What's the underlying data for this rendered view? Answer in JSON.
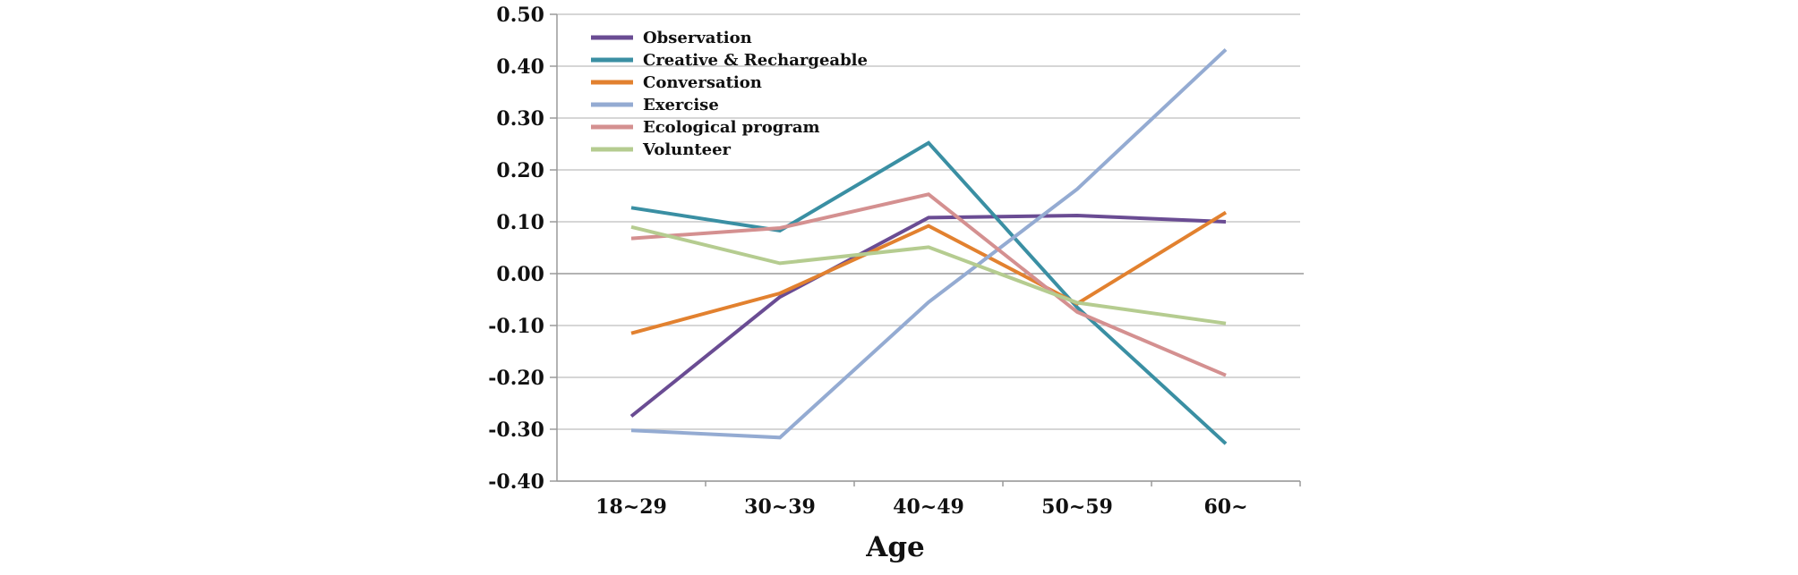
{
  "chart_data": {
    "type": "line",
    "title": "",
    "xlabel": "Age",
    "ylabel": "",
    "categories": [
      "18~29",
      "30~39",
      "40~49",
      "50~59",
      "60~"
    ],
    "ylim": [
      -0.4,
      0.5
    ],
    "yticks": [
      "0.50",
      "0.40",
      "0.30",
      "0.20",
      "0.10",
      "0.00",
      "-0.10",
      "-0.20",
      "-0.30",
      "-0.40"
    ],
    "grid": true,
    "legend_position": "top-left",
    "series": [
      {
        "name": "Observation",
        "color": "#6a4c93",
        "values": [
          -0.275,
          -0.045,
          0.108,
          0.112,
          0.1
        ]
      },
      {
        "name": "Creative & Rechargeable",
        "color": "#3a8fa3",
        "values": [
          0.127,
          0.083,
          0.252,
          -0.065,
          -0.328
        ]
      },
      {
        "name": "Conversation",
        "color": "#e2812f",
        "values": [
          -0.115,
          -0.038,
          0.092,
          -0.058,
          0.118
        ]
      },
      {
        "name": "Exercise",
        "color": "#94abd2",
        "values": [
          -0.302,
          -0.316,
          -0.055,
          0.163,
          0.432
        ]
      },
      {
        "name": "Ecological program",
        "color": "#d49090",
        "values": [
          0.068,
          0.088,
          0.153,
          -0.074,
          -0.196
        ]
      },
      {
        "name": "Volunteer",
        "color": "#b5cc90",
        "values": [
          0.09,
          0.02,
          0.051,
          -0.056,
          -0.096
        ]
      }
    ]
  }
}
